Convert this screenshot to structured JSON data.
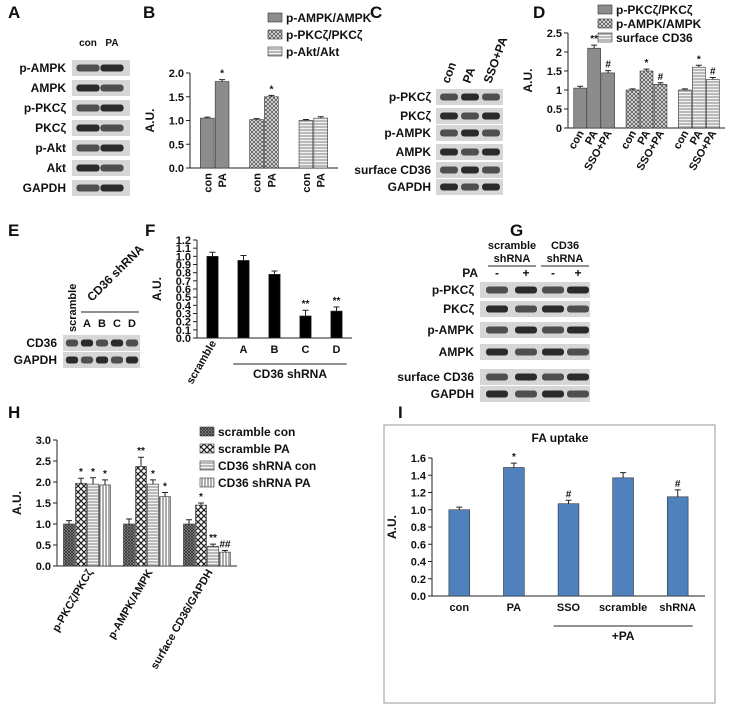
{
  "blots": [
    {
      "panel": "A",
      "lanes": [
        "con",
        "PA"
      ],
      "rows": [
        "p-AMPK",
        "AMPK",
        "p-PKCζ",
        "PKCζ",
        "p-Akt",
        "Akt",
        "GAPDH"
      ]
    },
    {
      "panel": "C",
      "lanes": [
        "con",
        "PA",
        "SSO+PA"
      ],
      "rows": [
        "p-PKCζ",
        "PKCζ",
        "p-AMPK",
        "AMPK",
        "surface CD36",
        "GAPDH"
      ]
    },
    {
      "panel": "E",
      "lanes": [
        "scramble",
        "A",
        "B",
        "C",
        "D"
      ],
      "group_label": "CD36 shRNA",
      "rows": [
        "CD36",
        "GAPDH"
      ]
    },
    {
      "panel": "G",
      "groups": [
        [
          "scramble",
          "shRNA"
        ],
        [
          "CD36",
          "shRNA"
        ]
      ],
      "treatment_label": "PA",
      "treatment": [
        "-",
        "+",
        "-",
        "+"
      ],
      "rows": [
        "p-PKCζ",
        "PKCζ",
        "p-AMPK",
        "AMPK",
        "surface CD36",
        "GAPDH"
      ]
    }
  ],
  "chart_data": [
    {
      "panel": "B",
      "type": "bar",
      "y_label": "A.U.",
      "categories": [
        "con",
        "PA"
      ],
      "series": [
        {
          "name": "p-AMPK/AMPK",
          "color": "#8c8c8c",
          "pattern": "solid",
          "values": [
            1.05,
            1.82
          ],
          "errors": [
            0.02,
            0.04
          ],
          "significance": [
            null,
            "*"
          ]
        },
        {
          "name": "p-PKCζ/PKCζ",
          "color": "#bdbdbd",
          "pattern": "cross",
          "values": [
            1.02,
            1.5
          ],
          "errors": [
            0.02,
            0.03
          ],
          "significance": [
            null,
            "*"
          ]
        },
        {
          "name": "p-Akt/Akt",
          "color": "#dcdcdc",
          "pattern": "hlines",
          "values": [
            1.0,
            1.05
          ],
          "errors": [
            0.02,
            0.03
          ],
          "significance": [
            null,
            null
          ]
        }
      ],
      "ylim": [
        0,
        2.0
      ],
      "yticks": [
        {
          "value": 0,
          "label": "0.0"
        },
        0.5,
        {
          "value": 1,
          "label": "1.0"
        },
        1.5,
        {
          "value": 2,
          "label": "2.0"
        }
      ]
    },
    {
      "panel": "D",
      "type": "bar",
      "y_label": "A.U.",
      "categories": [
        "con",
        "PA",
        "SSO+PA"
      ],
      "series": [
        {
          "name": "p-PKCζ/PKCζ",
          "color": "#8c8c8c",
          "pattern": "solid",
          "values": [
            1.05,
            2.1,
            1.45
          ],
          "errors": [
            0.05,
            0.08,
            0.06
          ],
          "significance": [
            null,
            "**",
            "#"
          ]
        },
        {
          "name": "p-AMPK/AMPK",
          "color": "#bdbdbd",
          "pattern": "cross",
          "values": [
            1.0,
            1.5,
            1.15
          ],
          "errors": [
            0.03,
            0.05,
            0.04
          ],
          "significance": [
            null,
            "*",
            "#"
          ]
        },
        {
          "name": "surface CD36",
          "color": "#dcdcdc",
          "pattern": "hlines",
          "values": [
            1.0,
            1.6,
            1.28
          ],
          "errors": [
            0.03,
            0.05,
            0.05
          ],
          "significance": [
            null,
            "*",
            "#"
          ]
        }
      ],
      "ylim": [
        0,
        2.5
      ],
      "yticks": [
        0,
        0.5,
        1,
        1.5,
        2,
        2.5
      ]
    },
    {
      "panel": "F",
      "type": "bar",
      "y_label": "A.U.",
      "categories": [
        "scramble",
        "A",
        "B",
        "C",
        "D"
      ],
      "series": [
        {
          "color": "#000000",
          "pattern": "solid",
          "values": [
            1.0,
            0.95,
            0.78,
            0.27,
            0.33
          ],
          "errors": [
            0.05,
            0.06,
            0.04,
            0.07,
            0.05
          ],
          "significance": [
            null,
            null,
            null,
            "**",
            "**"
          ]
        }
      ],
      "group_label": "CD36 shRNA",
      "ylim": [
        0,
        1.2
      ],
      "yticks": [
        {
          "value": 0,
          "label": "0.0"
        },
        0.1,
        0.2,
        0.3,
        0.4,
        0.5,
        0.6,
        0.7,
        0.8,
        0.9,
        {
          "value": 1,
          "label": "1.0"
        },
        1.1,
        1.2
      ]
    },
    {
      "panel": "H",
      "type": "bar",
      "y_label": "A.U.",
      "categories": [
        "p-PKCζ/PKCζ",
        "p-AMPK/AMPK",
        "surface CD36/GAPDH"
      ],
      "series": [
        {
          "name": "scramble con",
          "color": "#707070",
          "pattern": "dense",
          "values": [
            1.0,
            1.0,
            1.0
          ],
          "errors": [
            0.08,
            0.12,
            0.1
          ],
          "significance": [
            null,
            null,
            null
          ]
        },
        {
          "name": "scramble PA",
          "color": "#a0a0a0",
          "pattern": "check",
          "values": [
            1.97,
            2.37,
            1.45
          ],
          "errors": [
            0.12,
            0.22,
            0.05
          ],
          "significance": [
            "*",
            "**",
            "*"
          ]
        },
        {
          "name": "CD36 shRNA con",
          "color": "#e0e0e0",
          "pattern": "hlines",
          "values": [
            1.95,
            1.95,
            0.47
          ],
          "errors": [
            0.15,
            0.1,
            0.05
          ],
          "significance": [
            "*",
            "*",
            "**"
          ]
        },
        {
          "name": "CD36 shRNA PA",
          "color": "#e0e0e0",
          "pattern": "vlines",
          "values": [
            1.93,
            1.65,
            0.33
          ],
          "errors": [
            0.12,
            0.1,
            0.04
          ],
          "significance": [
            "*",
            "*",
            "##"
          ]
        }
      ],
      "ylim": [
        0,
        3.0
      ],
      "yticks": [
        {
          "value": 0,
          "label": "0.0"
        },
        0.5,
        {
          "value": 1,
          "label": "1.0"
        },
        1.5,
        {
          "value": 2,
          "label": "2.0"
        },
        2.5,
        {
          "value": 3,
          "label": "3.0"
        }
      ]
    },
    {
      "panel": "I",
      "type": "bar",
      "title": "FA uptake",
      "y_label": "A.U.",
      "categories": [
        "con",
        "PA",
        "SSO",
        "scramble",
        "shRNA"
      ],
      "series": [
        {
          "color": "#4f81bd",
          "pattern": "solid",
          "values": [
            1.0,
            1.49,
            1.07,
            1.37,
            1.15
          ],
          "errors": [
            0.03,
            0.05,
            0.04,
            0.06,
            0.08
          ],
          "significance": [
            null,
            "*",
            "#",
            null,
            "#"
          ]
        }
      ],
      "group_label": "+PA",
      "ylim": [
        0,
        1.6
      ],
      "yticks": [
        {
          "value": 0,
          "label": "0.0"
        },
        0.2,
        0.4,
        0.6,
        0.8,
        {
          "value": 1,
          "label": "1.0"
        },
        1.2,
        1.4,
        1.6
      ]
    }
  ]
}
